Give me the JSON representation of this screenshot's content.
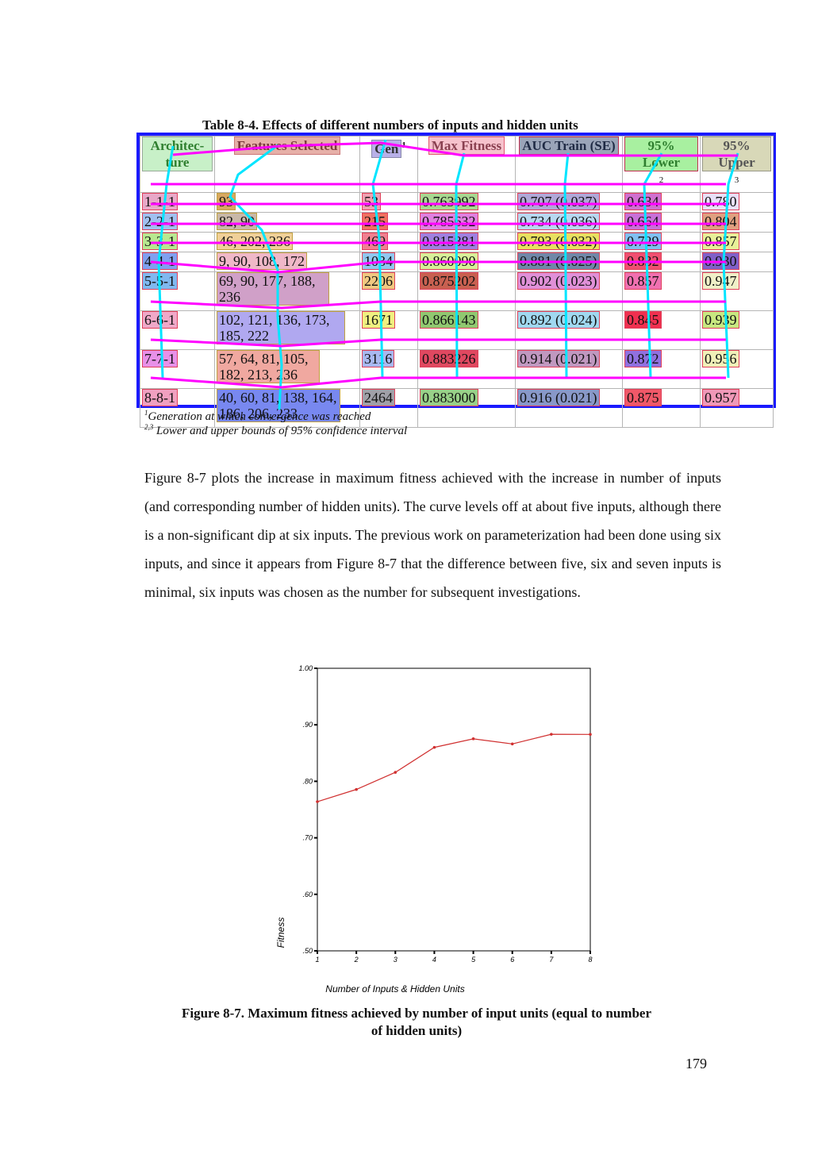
{
  "table": {
    "title": "Table 8-4. Effects of different numbers of inputs and hidden units",
    "headers": [
      {
        "text": "Architec-ture",
        "sup": ""
      },
      {
        "text": "Features Selected",
        "sup": ""
      },
      {
        "text": "Gen",
        "sup": "1"
      },
      {
        "text": "Max Fitness",
        "sup": ""
      },
      {
        "text": "AUC Train (SE)",
        "sup": ""
      },
      {
        "text": "95% Lower",
        "sup": "2"
      },
      {
        "text": "95% Upper",
        "sup": "3"
      }
    ],
    "rows": [
      {
        "arch": "1-1-1",
        "features": "93",
        "gen": "53",
        "fitness": "0.763992",
        "auc": "0.707 (0.037)",
        "lower": "0.634",
        "upper": "0.780"
      },
      {
        "arch": "2-2-1",
        "features": "82, 90",
        "gen": "215",
        "fitness": "0.785632",
        "auc": "0.734 (0.036)",
        "lower": "0.664",
        "upper": "0.804"
      },
      {
        "arch": "3-3-1",
        "features": "46, 202, 236",
        "gen": "469",
        "fitness": "0.815881",
        "auc": "0.793 (0.032)",
        "lower": "0.729",
        "upper": "0.857"
      },
      {
        "arch": "4-4-1",
        "features": "9, 90, 108, 172",
        "gen": "1034",
        "fitness": "0.860090",
        "auc": "0.881 (0.025)",
        "lower": "0.832",
        "upper": "0.930"
      },
      {
        "arch": "5-5-1",
        "features": "69, 90, 177, 188, 236",
        "gen": "2206",
        "fitness": "0.875202",
        "auc": "0.902 (0.023)",
        "lower": "0.857",
        "upper": "0.947"
      },
      {
        "arch": "6-6-1",
        "features": "102, 121, 136, 173, 185, 222",
        "gen": "1671",
        "fitness": "0.866143",
        "auc": "0.892 (0.024)",
        "lower": "0.845",
        "upper": "0.939"
      },
      {
        "arch": "7-7-1",
        "features": "57, 64, 81, 105, 182, 213, 236",
        "gen": "3116",
        "fitness": "0.883226",
        "auc": "0.914 (0.021)",
        "lower": "0.872",
        "upper": "0.956"
      },
      {
        "arch": "8-8-1",
        "features": "40, 60, 81, 138, 164, 186, 206, 233",
        "gen": "2464",
        "fitness": "0.883000",
        "auc": "0.916 (0.021)",
        "lower": "0.875",
        "upper": "0.957"
      }
    ]
  },
  "footnotes": {
    "note1_sup": "1",
    "note1": "Generation at which convergence was reached",
    "note2_sup": "2,3",
    "note2": "Lower and upper bounds of 95% confidence interval"
  },
  "paragraph": "Figure 8-7 plots the increase in maximum fitness achieved with the increase in number of inputs (and corresponding number of hidden units). The curve levels off at about five inputs, although there is a non-significant dip at six inputs. The previous work on parameterization had been done using six inputs, and since it appears from Figure 8-7 that the difference between five, six and seven inputs is minimal, six inputs was chosen as the number for subsequent investigations.",
  "chart_data": {
    "type": "line",
    "title": "",
    "xlabel": "Number of Inputs & Hidden Units",
    "ylabel": "Fitness",
    "x": [
      1,
      2,
      3,
      4,
      5,
      6,
      7,
      8
    ],
    "series": [
      {
        "values": [
          0.763992,
          0.785632,
          0.815881,
          0.86009,
          0.875202,
          0.866143,
          0.883226,
          0.883
        ]
      }
    ],
    "ylim": [
      0.5,
      1.0
    ],
    "xlim": [
      1,
      8
    ],
    "y_ticks": [
      ".50",
      ".60",
      ".70",
      ".80",
      ".90",
      "1.00"
    ],
    "x_ticks": [
      "1",
      "2",
      "3",
      "4",
      "5",
      "6",
      "7",
      "8"
    ],
    "line_color": "#d03030",
    "grid": false
  },
  "figure_caption": {
    "line1": "Figure 8-7. Maximum fitness achieved by number of input units (equal to number",
    "line2": "of hidden units)"
  },
  "page_number": "179",
  "colors": {
    "table_frame": "#1a1aff",
    "overlay_column_line": "#00e5ff",
    "overlay_row_line": "#ff00ff"
  }
}
